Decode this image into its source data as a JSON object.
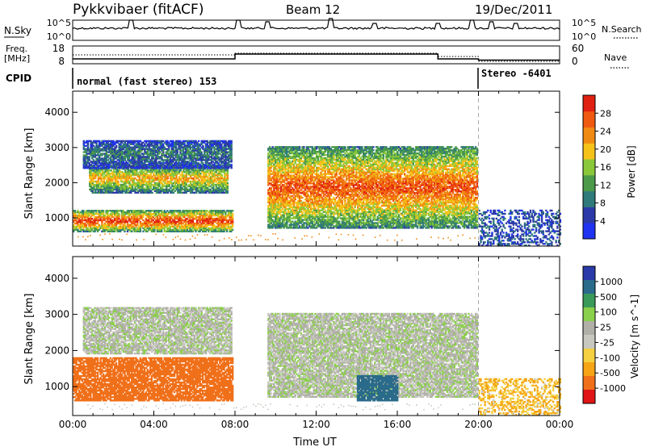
{
  "header": {
    "station": "Pykkvibaer (fitACF)",
    "beam": "Beam 12",
    "date": "19/Dec/2011"
  },
  "strip_noise": {
    "left_label": "N.Sky",
    "right_label": "N.Search",
    "left_ticks": [
      "10^5",
      "10^0"
    ],
    "right_ticks": [
      "10^5",
      "10^0"
    ]
  },
  "strip_freq": {
    "left_label": "Freq.",
    "left_unit": "[MHz]",
    "right_label": "Nave",
    "left_ticks": [
      "18",
      "8"
    ],
    "right_ticks": [
      "60",
      "0"
    ]
  },
  "strip_cpid": {
    "label": "CPID",
    "mode_1": "normal (fast stereo) 153",
    "mode_2": "Stereo -6401"
  },
  "colors": {
    "power_scale": [
      "#1f33f0",
      "#2c3aa8",
      "#2f7a7a",
      "#4a9a4a",
      "#8ac83a",
      "#f5c21a",
      "#f08a12",
      "#f05a10",
      "#e02010"
    ],
    "velocity_scale": [
      "#e01515",
      "#f0701a",
      "#f5a515",
      "#f5d040",
      "#c8c8c0",
      "#b0b0a8",
      "#8ad04a",
      "#3a9a5a",
      "#2a6a8a",
      "#2a3aa8"
    ]
  },
  "chart_data": [
    {
      "type": "heatmap",
      "name_hint": "power",
      "xlabel": "",
      "ylabel": "Slant Range [km]",
      "ylim": [
        200,
        4600
      ],
      "yticks": [
        "1000",
        "2000",
        "3000",
        "4000"
      ],
      "xlim": [
        0,
        24
      ],
      "colorbar": {
        "label": "Power [dB]",
        "range": [
          0,
          32
        ],
        "ticks": [
          "4",
          "8",
          "12",
          "16",
          "20",
          "24",
          "28"
        ]
      },
      "echo_regions": [
        {
          "t_start": 0.0,
          "t_end": 7.9,
          "range_start": 600,
          "range_end": 1200,
          "peak_power": 30
        },
        {
          "t_start": 0.8,
          "t_end": 7.6,
          "range_start": 1700,
          "range_end": 2500,
          "peak_power": 22
        },
        {
          "t_start": 0.5,
          "t_end": 7.8,
          "range_start": 2400,
          "range_end": 3200,
          "peak_power": 10
        },
        {
          "t_start": 9.6,
          "t_end": 19.9,
          "range_start": 700,
          "range_end": 3000,
          "peak_power": 28
        },
        {
          "t_start": 20.0,
          "t_end": 24.0,
          "range_start": 200,
          "range_end": 1200,
          "peak_power": 8
        }
      ]
    },
    {
      "type": "heatmap",
      "name_hint": "velocity",
      "xlabel": "Time UT",
      "ylabel": "Slant Range [km]",
      "ylim": [
        200,
        4600
      ],
      "yticks": [
        "1000",
        "2000",
        "3000",
        "4000"
      ],
      "xlim": [
        0,
        24
      ],
      "xticks": [
        "00:00",
        "04:00",
        "08:00",
        "12:00",
        "16:00",
        "20:00",
        "00:00"
      ],
      "colorbar": {
        "label": "Velocity [m s^-1]",
        "ticks": [
          "1000",
          "500",
          "100",
          "25",
          "-25",
          "-100",
          "-500",
          "-1000"
        ]
      },
      "echo_regions": [
        {
          "t_start": 0.0,
          "t_end": 7.9,
          "range_start": 600,
          "range_end": 1800,
          "velocity": -150
        },
        {
          "t_start": 0.5,
          "t_end": 7.8,
          "range_start": 1900,
          "range_end": 3200,
          "velocity": 10
        },
        {
          "t_start": 9.6,
          "t_end": 19.9,
          "range_start": 700,
          "range_end": 3000,
          "velocity": 10
        },
        {
          "t_start": 14.0,
          "t_end": 16.0,
          "range_start": 600,
          "range_end": 1300,
          "velocity": 200
        },
        {
          "t_start": 20.0,
          "t_end": 24.0,
          "range_start": 200,
          "range_end": 1200,
          "velocity": -50
        }
      ]
    }
  ]
}
